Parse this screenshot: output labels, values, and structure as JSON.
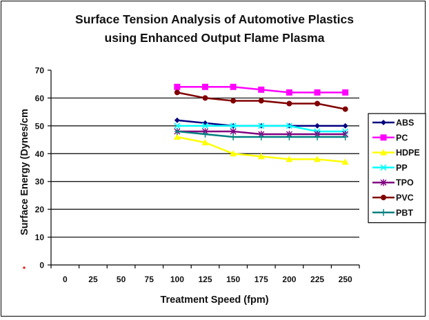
{
  "chart_data": {
    "type": "line",
    "title": [
      "Surface Tension Analysis of Automotive Plastics",
      "using Enhanced Output Flame Plasma"
    ],
    "xlabel": "Treatment Speed (fpm)",
    "ylabel": "Surface Energy (Dynes/cm",
    "categories": [
      "0",
      "25",
      "50",
      "75",
      "100",
      "125",
      "150",
      "175",
      "200",
      "225",
      "250"
    ],
    "ylim": [
      0,
      70
    ],
    "yticks": [
      0,
      10,
      20,
      30,
      40,
      50,
      60,
      70
    ],
    "grid": "horizontal",
    "legend_position": "right",
    "series": [
      {
        "name": "ABS",
        "color": "#000080",
        "marker": "diamond",
        "values": [
          null,
          null,
          null,
          null,
          52,
          51,
          50,
          50,
          50,
          50,
          50
        ]
      },
      {
        "name": "PC",
        "color": "#FF00FF",
        "marker": "square",
        "values": [
          null,
          null,
          null,
          null,
          64,
          64,
          64,
          63,
          62,
          62,
          62
        ]
      },
      {
        "name": "HDPE",
        "color": "#FFFF00",
        "marker": "triangle",
        "values": [
          null,
          null,
          null,
          null,
          46,
          44,
          40,
          39,
          38,
          38,
          37
        ]
      },
      {
        "name": "PP",
        "color": "#00FFFF",
        "marker": "x",
        "values": [
          null,
          null,
          null,
          null,
          50,
          50,
          50,
          50,
          50,
          48,
          48
        ]
      },
      {
        "name": "TPO",
        "color": "#800080",
        "marker": "star",
        "values": [
          null,
          null,
          null,
          null,
          48,
          48,
          48,
          47,
          47,
          47,
          47
        ]
      },
      {
        "name": "PVC",
        "color": "#800000",
        "marker": "circle",
        "values": [
          null,
          null,
          null,
          null,
          62,
          60,
          59,
          59,
          58,
          58,
          56
        ]
      },
      {
        "name": "PBT",
        "color": "#008080",
        "marker": "plus",
        "values": [
          null,
          null,
          null,
          null,
          48,
          47,
          46,
          46,
          46,
          46,
          46
        ]
      }
    ]
  }
}
